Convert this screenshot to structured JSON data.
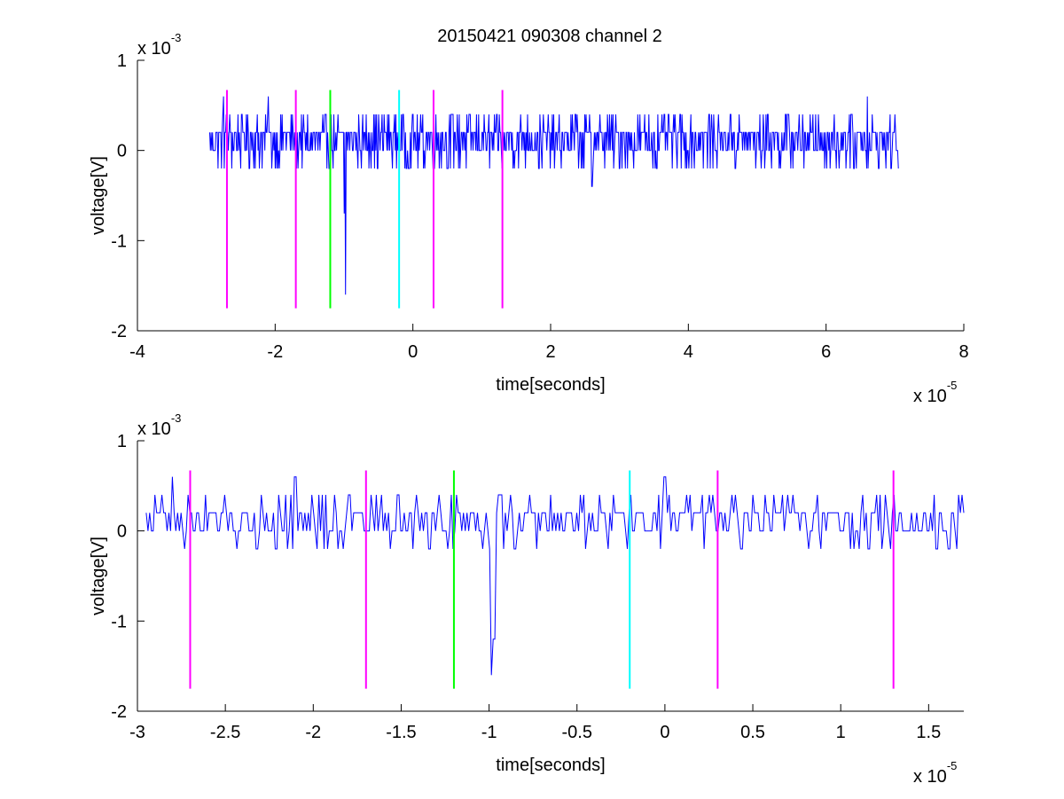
{
  "figure": {
    "title": "20150421 090308 channel 2"
  },
  "chart_data": [
    {
      "type": "line",
      "xlabel": "time[seconds]",
      "ylabel": "voltage[V]",
      "x_exponent": {
        "base": "x 10",
        "power": "-5"
      },
      "y_exponent": {
        "base": "x 10",
        "power": "-3"
      },
      "xlim": [
        -4,
        8
      ],
      "ylim": [
        -2,
        1
      ],
      "x_ticks": [
        -4,
        -2,
        0,
        2,
        4,
        6,
        8
      ],
      "x_tick_labels": [
        "-4",
        "-2",
        "0",
        "2",
        "4",
        "6",
        "8"
      ],
      "y_ticks": [
        -2,
        -1,
        0,
        1
      ],
      "y_tick_labels": [
        "-2",
        "-1",
        "0",
        "1"
      ],
      "grid": false,
      "trace": {
        "color": "#0000ff",
        "x_start": -2.95,
        "x_end": 7.05,
        "noise_levels": [
          -0.2,
          0,
          0.2,
          0.4
        ],
        "spikes": [
          {
            "x": -0.98,
            "y": -1.6
          },
          {
            "x": -1.0,
            "y": -0.7
          },
          {
            "x": 2.6,
            "y": -0.4
          },
          {
            "x": 6.6,
            "y": 0.6
          },
          {
            "x": -2.75,
            "y": 0.6
          },
          {
            "x": -2.1,
            "y": 0.6
          }
        ]
      },
      "markers": [
        {
          "x": -2.7,
          "y0": -1.75,
          "y1": 0.67,
          "color": "#ff00ff"
        },
        {
          "x": -1.7,
          "y0": -1.75,
          "y1": 0.67,
          "color": "#ff00ff"
        },
        {
          "x": -1.2,
          "y0": -1.75,
          "y1": 0.67,
          "color": "#00ff00"
        },
        {
          "x": -0.2,
          "y0": -1.75,
          "y1": 0.67,
          "color": "#00ffff"
        },
        {
          "x": 0.3,
          "y0": -1.75,
          "y1": 0.67,
          "color": "#ff00ff"
        },
        {
          "x": 1.3,
          "y0": -1.75,
          "y1": 0.67,
          "color": "#ff00ff"
        }
      ]
    },
    {
      "type": "line",
      "xlabel": "time[seconds]",
      "ylabel": "voltage[V]",
      "x_exponent": {
        "base": "x 10",
        "power": "-5"
      },
      "y_exponent": {
        "base": "x 10",
        "power": "-3"
      },
      "xlim": [
        -3,
        1.7
      ],
      "ylim": [
        -2,
        1
      ],
      "x_ticks": [
        -3,
        -2.5,
        -2,
        -1.5,
        -1,
        -0.5,
        0,
        0.5,
        1,
        1.5
      ],
      "x_tick_labels": [
        "-3",
        "-2.5",
        "-2",
        "-1.5",
        "-1",
        "-0.5",
        "0",
        "0.5",
        "1",
        "1.5"
      ],
      "y_ticks": [
        -2,
        -1,
        0,
        1
      ],
      "y_tick_labels": [
        "-2",
        "-1",
        "0",
        "1"
      ],
      "grid": false,
      "trace": {
        "color": "#0000ff",
        "x_start": -2.95,
        "x_end": 1.7,
        "noise_levels": [
          -0.2,
          0,
          0.2,
          0.4
        ],
        "spikes": [
          {
            "x": -0.98,
            "y": -1.6
          },
          {
            "x": -0.97,
            "y": -1.2
          },
          {
            "x": -2.8,
            "y": 0.6
          },
          {
            "x": -2.1,
            "y": 0.6
          },
          {
            "x": 0.0,
            "y": 0.6
          }
        ]
      },
      "markers": [
        {
          "x": -2.7,
          "y0": -1.75,
          "y1": 0.67,
          "color": "#ff00ff"
        },
        {
          "x": -1.7,
          "y0": -1.75,
          "y1": 0.67,
          "color": "#ff00ff"
        },
        {
          "x": -1.2,
          "y0": -1.75,
          "y1": 0.67,
          "color": "#00ff00"
        },
        {
          "x": -0.2,
          "y0": -1.75,
          "y1": 0.67,
          "color": "#00ffff"
        },
        {
          "x": 0.3,
          "y0": -1.75,
          "y1": 0.67,
          "color": "#ff00ff"
        },
        {
          "x": 1.3,
          "y0": -1.75,
          "y1": 0.67,
          "color": "#ff00ff"
        }
      ]
    }
  ]
}
